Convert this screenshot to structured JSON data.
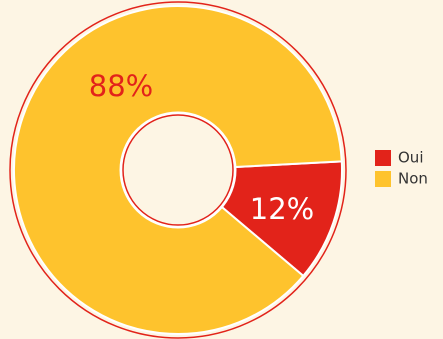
{
  "chart_data": {
    "type": "pie",
    "categories": [
      "Oui",
      "Non"
    ],
    "values": [
      12,
      88
    ],
    "value_labels": [
      "12%",
      "88%"
    ],
    "colors": [
      "#e2231a",
      "#fec32d"
    ],
    "donut": true
  }
}
